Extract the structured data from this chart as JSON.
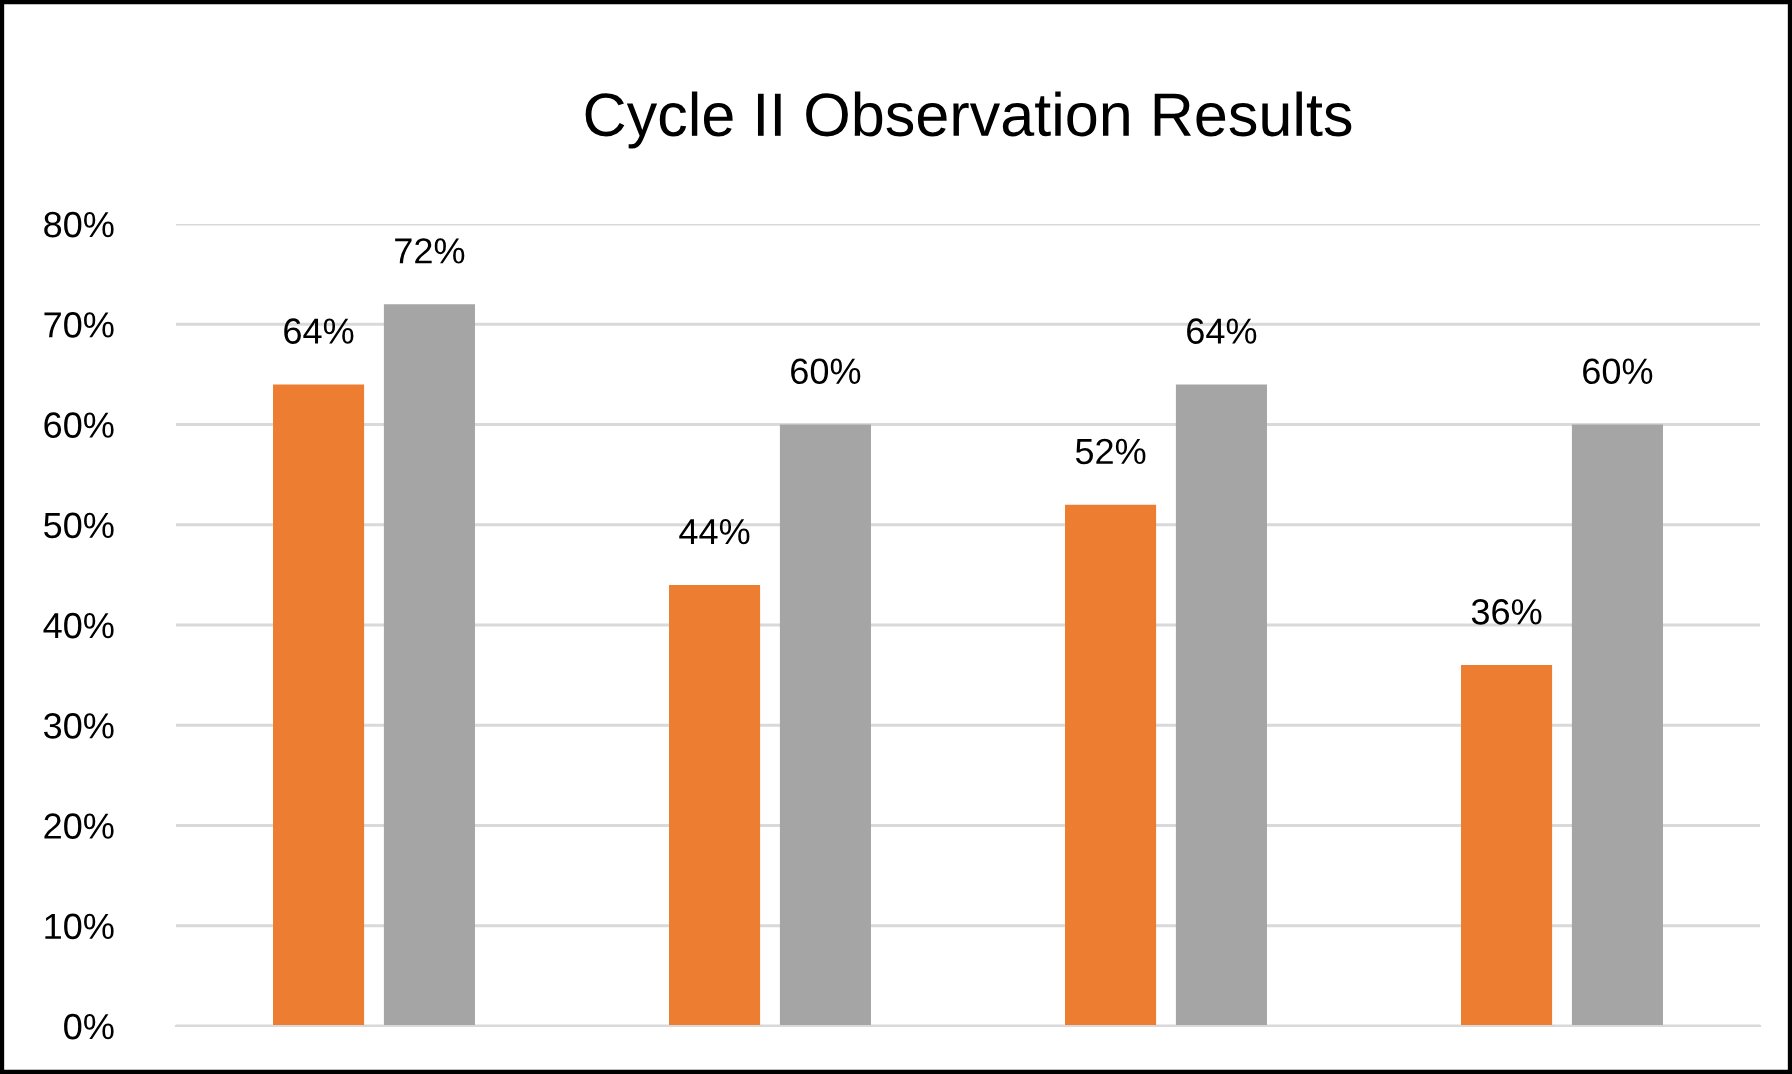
{
  "chart_data": {
    "type": "bar",
    "title": "Cycle II Observation Results",
    "categories": [
      null,
      null,
      null,
      null
    ],
    "series": [
      {
        "color": "#ed7d31",
        "values": [
          64,
          44,
          52,
          36
        ],
        "value_labels": [
          "64%",
          "44%",
          "52%",
          "36%"
        ]
      },
      {
        "color": "#a5a5a5",
        "values": [
          72,
          60,
          64,
          60
        ],
        "value_labels": [
          "72%",
          "60%",
          "64%",
          "60%"
        ]
      }
    ],
    "ylim": [
      0,
      80
    ],
    "yticks": [
      {
        "value": 0,
        "label": "0%"
      },
      {
        "value": 10,
        "label": "10%"
      },
      {
        "value": 20,
        "label": "20%"
      },
      {
        "value": 30,
        "label": "30%"
      },
      {
        "value": 40,
        "label": "40%"
      },
      {
        "value": 50,
        "label": "50%"
      },
      {
        "value": 60,
        "label": "60%"
      },
      {
        "value": 70,
        "label": "70%"
      },
      {
        "value": 80,
        "label": "80%"
      }
    ],
    "grid": "y"
  }
}
